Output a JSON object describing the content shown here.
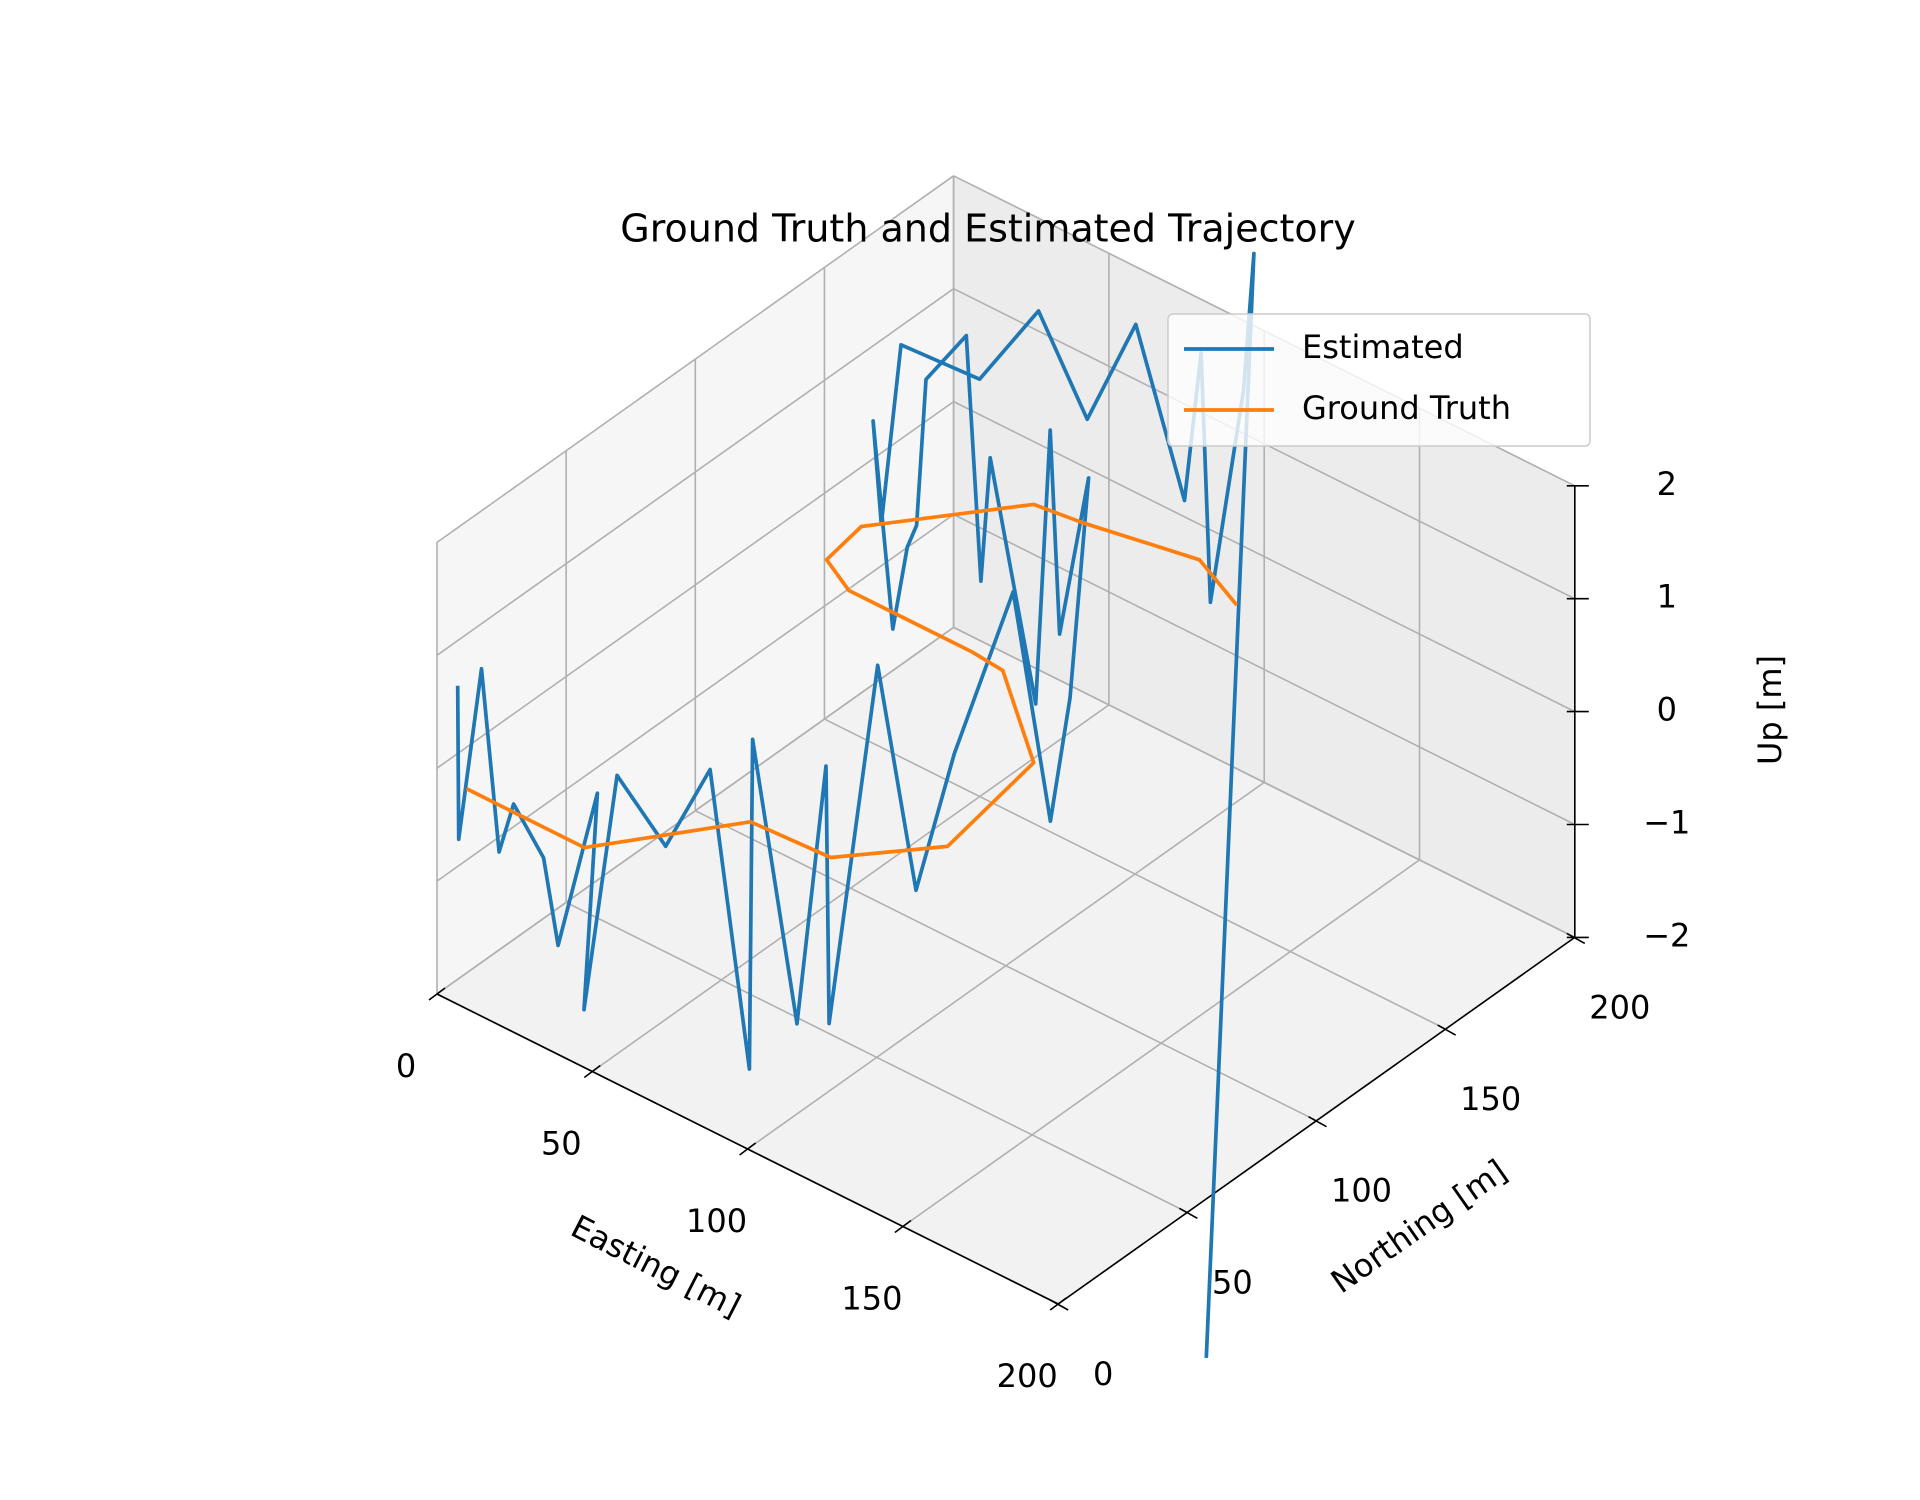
{
  "chart_data": {
    "type": "line3d",
    "title": "Ground Truth and Estimated Trajectory",
    "xlabel": "Easting [m]",
    "ylabel": "Northing [m]",
    "zlabel": "Up [m]",
    "xlim": [
      0,
      200
    ],
    "ylim": [
      0,
      200
    ],
    "zlim": [
      -2,
      2
    ],
    "xticks": [
      0,
      50,
      100,
      150,
      200
    ],
    "yticks": [
      0,
      50,
      100,
      150,
      200
    ],
    "zticks": [
      {
        "value": -2,
        "label": "−2"
      },
      {
        "value": -1,
        "label": "−1"
      },
      0,
      1,
      2
    ],
    "grid": true,
    "legend": "upper right",
    "series": [
      {
        "name": "Estimated",
        "color": "#1f77b4",
        "x": [
          0,
          2,
          6,
          10,
          18,
          26,
          34,
          40,
          44,
          48,
          52,
          58,
          64,
          70,
          76,
          82,
          88,
          92,
          96,
          100,
          104,
          106,
          104,
          100,
          94,
          86,
          78,
          70,
          62,
          54,
          46,
          38,
          30,
          22,
          14,
          10,
          8,
          20,
          34,
          48,
          62,
          76,
          88,
          96,
          100,
          100,
          98
        ],
        "y": [
          8,
          6,
          10,
          12,
          8,
          10,
          6,
          14,
          4,
          12,
          26,
          36,
          44,
          38,
          48,
          52,
          46,
          60,
          70,
          80,
          98,
          110,
          120,
          132,
          128,
          134,
          138,
          130,
          136,
          140,
          134,
          140,
          146,
          150,
          152,
          160,
          170,
          186,
          192,
          194,
          196,
          198,
          190,
          184,
          192,
          196,
          180
        ],
        "z": [
          0.6,
          -0.7,
          0.8,
          -0.8,
          -0.2,
          -0.6,
          -1.2,
          0.1,
          -1.6,
          0.4,
          -0.4,
          0.2,
          -2.5,
          0.6,
          -2.0,
          0.3,
          -1.8,
          1.2,
          -0.9,
          0.2,
          1.4,
          -0.8,
          0.1,
          1.8,
          0.4,
          2.0,
          -0.6,
          1.6,
          0.3,
          2.3,
          1.9,
          0.4,
          0.0,
          -0.9,
          0.8,
          -0.3,
          1.1,
          0.7,
          1.4,
          0.6,
          1.6,
          0.2,
          1.8,
          -0.2,
          1.6,
          2.75,
          -6.8
        ]
      },
      {
        "name": "Ground Truth",
        "color": "#ff7f0e",
        "x": [
          2,
          40,
          64.5,
          89.2,
          108.3,
          102.3,
          71.9,
          61.2,
          21.5,
          9.1,
          6.8,
          33.5,
          47.7,
          79.6,
          98.7
        ],
        "y": [
          9,
          9,
          43.8,
          45.2,
          67.4,
          108,
          132.6,
          133.6,
          133.6,
          139.9,
          156.1,
          190.7,
          192.7,
          199.5,
          190.9
        ],
        "z": [
          -0.3,
          -0.3,
          -0.3,
          -0.3,
          -0.3,
          -0.3,
          -0.3,
          -0.3,
          -0.3,
          -0.3,
          -0.3,
          -0.3,
          -0.3,
          -0.3,
          -0.3
        ]
      }
    ]
  }
}
